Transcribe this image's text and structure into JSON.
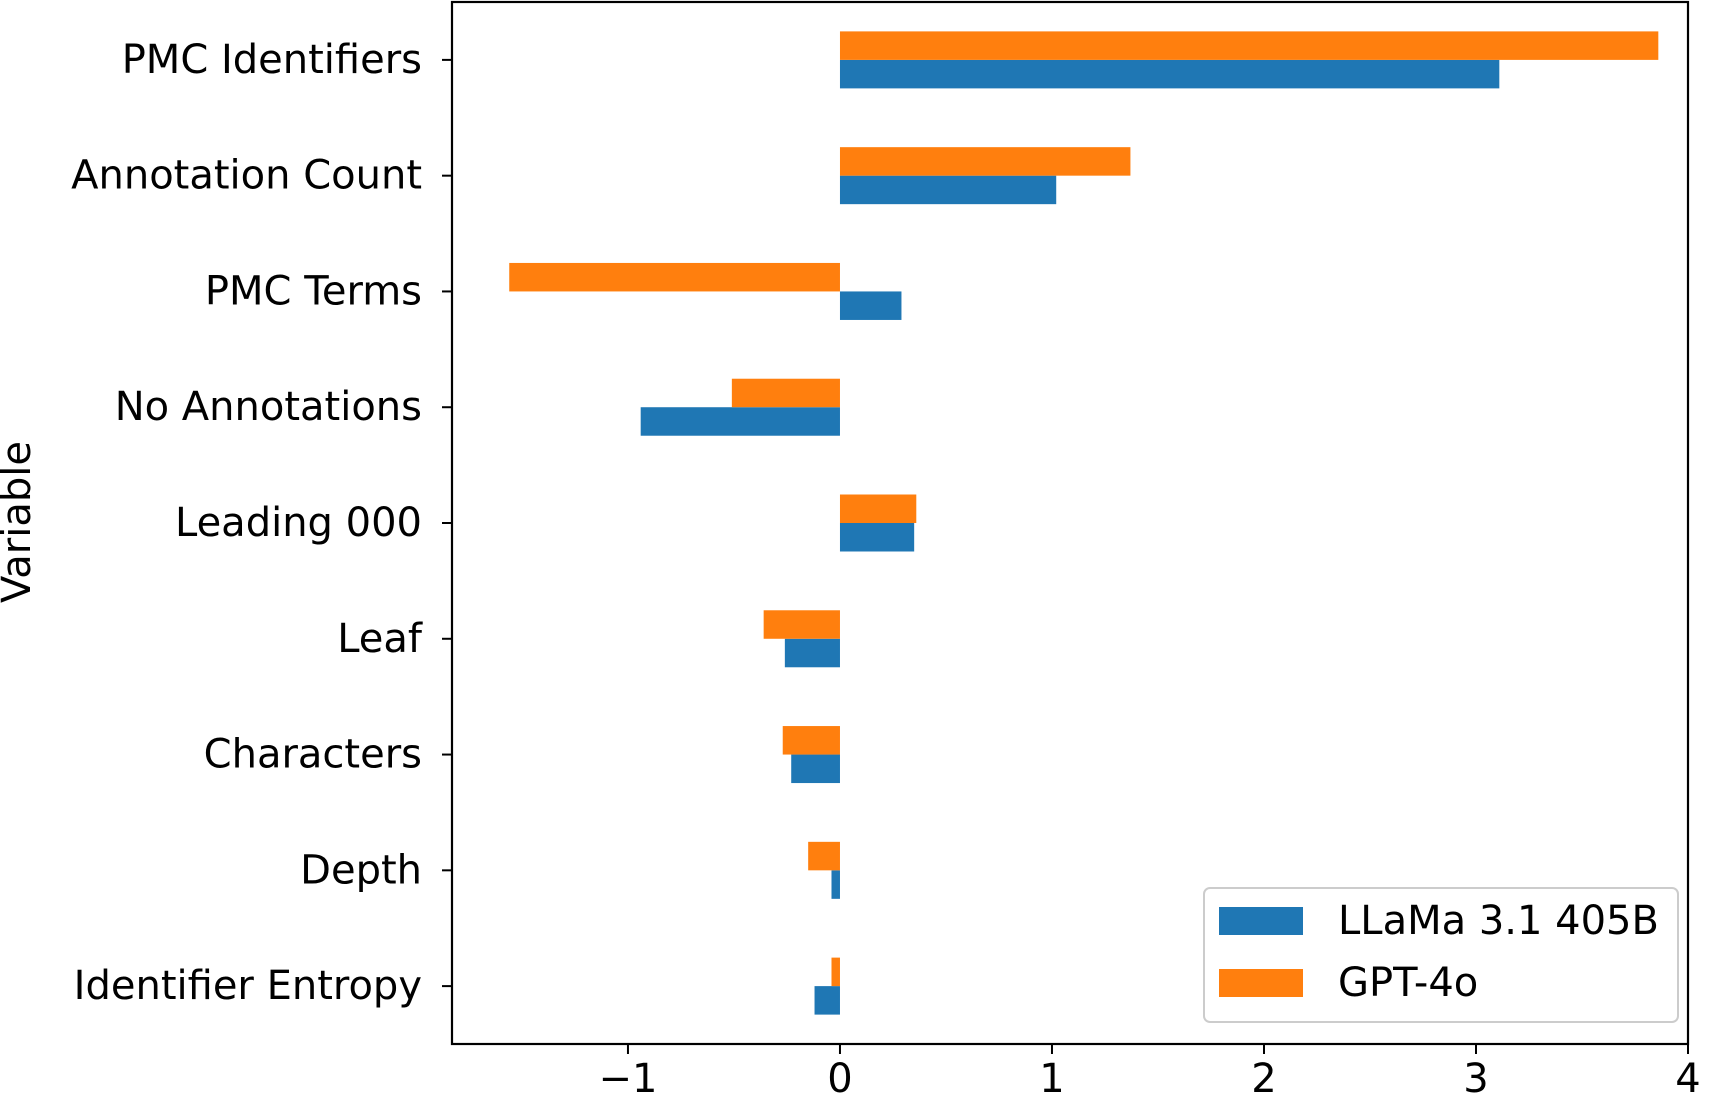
{
  "chart_data": {
    "type": "bar",
    "orientation": "horizontal",
    "title": "",
    "xlabel": "",
    "ylabel": "Variable",
    "categories": [
      "PMC Identifiers",
      "Annotation Count",
      "PMC Terms",
      "No Annotations",
      "Leading 000",
      "Leaf",
      "Characters",
      "Depth",
      "Identifier Entropy"
    ],
    "series": [
      {
        "name": "LLaMa 3.1 405B",
        "color": "#1f77b4",
        "values": [
          3.11,
          1.02,
          0.29,
          -0.94,
          0.35,
          -0.26,
          -0.23,
          -0.04,
          -0.12
        ]
      },
      {
        "name": "GPT-4o",
        "color": "#ff7f0e",
        "values": [
          3.86,
          1.37,
          -1.56,
          -0.51,
          0.36,
          -0.36,
          -0.27,
          -0.15,
          -0.04
        ]
      }
    ],
    "xlim": [
      -1.83,
      4.0
    ],
    "xticks": [
      -1,
      0,
      1,
      2,
      3,
      4
    ],
    "xtick_labels": [
      "−1",
      "0",
      "1",
      "2",
      "3",
      "4"
    ],
    "legend": {
      "position": "lower-right",
      "entries": [
        "LLaMa 3.1 405B",
        "GPT-4o"
      ]
    },
    "grid": false
  }
}
